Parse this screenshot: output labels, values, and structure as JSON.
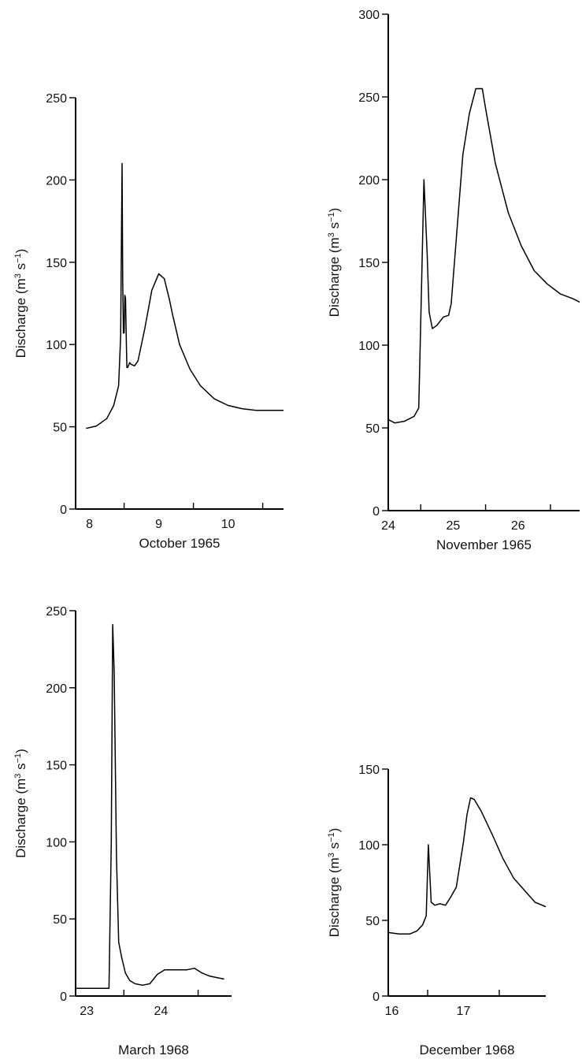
{
  "chart_data": [
    {
      "type": "line",
      "xlabel": "October 1965",
      "ylabel": "Discharge (m³ s⁻¹)",
      "ylabel_parts": {
        "base": "Discharge (m",
        "sup1": "3",
        "mid": " s",
        "sup2": "−1",
        "end": ")"
      },
      "ylim": [
        0,
        250
      ],
      "yticks": [
        0,
        50,
        100,
        150,
        200,
        250
      ],
      "xlim": [
        7.6,
        10.6
      ],
      "xtick_positions": [
        8.3,
        9.3,
        10.3
      ],
      "xtick_labels": [
        "8",
        "9",
        "10"
      ],
      "grid": false,
      "series": [
        {
          "x": [
            7.75,
            7.9,
            8.05,
            8.15,
            8.22,
            8.25,
            8.27,
            8.28,
            8.29,
            8.3,
            8.31,
            8.32,
            8.33,
            8.34,
            8.35,
            8.36,
            8.37,
            8.38,
            8.4,
            8.45,
            8.5,
            8.6,
            8.7,
            8.8,
            8.88,
            8.95,
            9.0,
            9.1,
            9.25,
            9.4,
            9.6,
            9.8,
            10.0,
            10.2,
            10.4,
            10.6
          ],
          "y": [
            49,
            50.5,
            55,
            63,
            75,
            105,
            210,
            140,
            107,
            107,
            130,
            128,
            107,
            86,
            86,
            87,
            88,
            89,
            88,
            87,
            90,
            110,
            133,
            143,
            140,
            128,
            118,
            100,
            85,
            75,
            67,
            63,
            61,
            60,
            60,
            60
          ]
        }
      ]
    },
    {
      "type": "line",
      "xlabel": "November 1965",
      "ylabel": "Discharge (m³ s⁻¹)",
      "ylabel_parts": {
        "base": "Discharge (m",
        "sup1": "3",
        "mid": " s",
        "sup2": "−1",
        "end": ")"
      },
      "ylim": [
        0,
        300
      ],
      "yticks": [
        0,
        50,
        100,
        150,
        200,
        250,
        300
      ],
      "xlim": [
        23.65,
        26.6
      ],
      "xtick_positions": [
        24.15,
        25.15,
        26.15
      ],
      "xtick_labels": [
        "24",
        "25",
        "26"
      ],
      "grid": false,
      "series": [
        {
          "x": [
            23.65,
            23.75,
            23.9,
            24.05,
            24.12,
            24.16,
            24.2,
            24.25,
            24.28,
            24.33,
            24.4,
            24.5,
            24.58,
            24.62,
            24.7,
            24.8,
            24.9,
            25.0,
            25.1,
            25.15,
            25.2,
            25.3,
            25.5,
            25.7,
            25.9,
            26.1,
            26.3,
            26.5,
            26.6
          ],
          "y": [
            55,
            53,
            54,
            57,
            62,
            130,
            200,
            155,
            120,
            110,
            112,
            117,
            118,
            125,
            165,
            215,
            240,
            255,
            255,
            243,
            232,
            210,
            180,
            160,
            145,
            137,
            131,
            128,
            126
          ]
        }
      ]
    },
    {
      "type": "line",
      "xlabel": "March 1968",
      "ylabel": "Discharge (m³ s⁻¹)",
      "ylabel_parts": {
        "base": "Discharge (m",
        "sup1": "3",
        "mid": " s",
        "sup2": "−1",
        "end": ")"
      },
      "ylim": [
        0,
        250
      ],
      "yticks": [
        0,
        50,
        100,
        150,
        200,
        250
      ],
      "xlim": [
        22.6,
        24.7
      ],
      "xtick_positions": [
        23.25,
        24.25
      ],
      "xtick_labels": [
        "23",
        "24"
      ],
      "grid": false,
      "series": [
        {
          "x": [
            22.6,
            23.02,
            23.05,
            23.08,
            23.1,
            23.12,
            23.15,
            23.18,
            23.22,
            23.27,
            23.33,
            23.4,
            23.5,
            23.6,
            23.7,
            23.8,
            23.9,
            24.0,
            24.1,
            24.2,
            24.3,
            24.4,
            24.6
          ],
          "y": [
            5,
            5,
            5,
            100,
            241,
            210,
            90,
            35,
            25,
            15,
            10,
            8,
            7,
            8,
            14,
            17,
            17,
            17,
            17,
            18,
            15,
            13,
            11
          ]
        }
      ]
    },
    {
      "type": "line",
      "xlabel": "December 1968",
      "ylabel": "Discharge (m³ s⁻¹)",
      "ylabel_parts": {
        "base": "Discharge (m",
        "sup1": "3",
        "mid": " s",
        "sup2": "−1",
        "end": ")"
      },
      "ylim": [
        0,
        150
      ],
      "yticks": [
        0,
        50,
        100,
        150
      ],
      "xlim": [
        15.4,
        17.6
      ],
      "xtick_positions": [
        15.95,
        16.95
      ],
      "xtick_labels": [
        "16",
        "17"
      ],
      "grid": false,
      "series": [
        {
          "x": [
            15.4,
            15.55,
            15.7,
            15.8,
            15.88,
            15.93,
            15.96,
            16.0,
            16.05,
            16.12,
            16.2,
            16.28,
            16.35,
            16.45,
            16.5,
            16.55,
            16.6,
            16.7,
            16.85,
            17.0,
            17.15,
            17.3,
            17.45,
            17.6
          ],
          "y": [
            42,
            41,
            41,
            43,
            47,
            53,
            100,
            62,
            60,
            61,
            60,
            66,
            72,
            102,
            120,
            131,
            130,
            122,
            107,
            91,
            78,
            70,
            62,
            59
          ]
        }
      ]
    }
  ]
}
